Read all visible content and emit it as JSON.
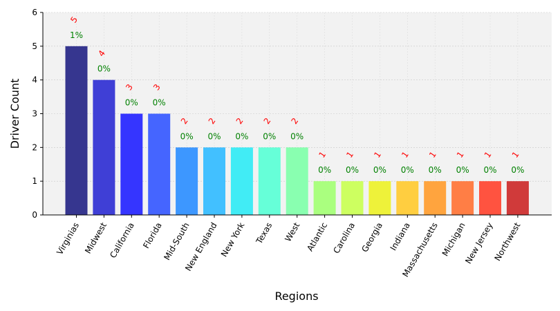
{
  "chart_data": {
    "type": "bar",
    "xlabel": "Regions",
    "ylabel": "Driver Count",
    "ylim": [
      0,
      6
    ],
    "yticks": [
      0,
      1,
      2,
      3,
      4,
      5,
      6
    ],
    "grid": true,
    "categories": [
      "Virginias",
      "Midwest",
      "California",
      "Florida",
      "Mid-South",
      "New England",
      "New York",
      "Texas",
      "West",
      "Atlantic",
      "Carolina",
      "Georgia",
      "Indiana",
      "Massachusetts",
      "Michigan",
      "New Jersey",
      "Northwest"
    ],
    "values": [
      5,
      4,
      3,
      3,
      2,
      2,
      2,
      2,
      2,
      1,
      1,
      1,
      1,
      1,
      1,
      1,
      1
    ],
    "count_labels": [
      "5",
      "4",
      "3",
      "3",
      "2",
      "2",
      "2",
      "2",
      "2",
      "1",
      "1",
      "1",
      "1",
      "1",
      "1",
      "1",
      "1"
    ],
    "percent_labels": [
      "1%",
      "0%",
      "0%",
      "0%",
      "0%",
      "0%",
      "0%",
      "0%",
      "0%",
      "0%",
      "0%",
      "0%",
      "0%",
      "0%",
      "0%",
      "0%",
      "0%"
    ],
    "colors": [
      "#36368f",
      "#3f3fd6",
      "#3535ff",
      "#4565ff",
      "#3d97ff",
      "#42c0ff",
      "#41ecf5",
      "#66ffd8",
      "#89ffb0",
      "#aaff7f",
      "#cdff60",
      "#eef23a",
      "#ffce40",
      "#ffa43e",
      "#ff7e45",
      "#ff5340",
      "#d03a3a"
    ],
    "colors_meta": {
      "plot_background": "#f2f2f2",
      "grid": "#c8c8c8",
      "count_text": "#ff0000",
      "percent_text": "#008000"
    }
  }
}
